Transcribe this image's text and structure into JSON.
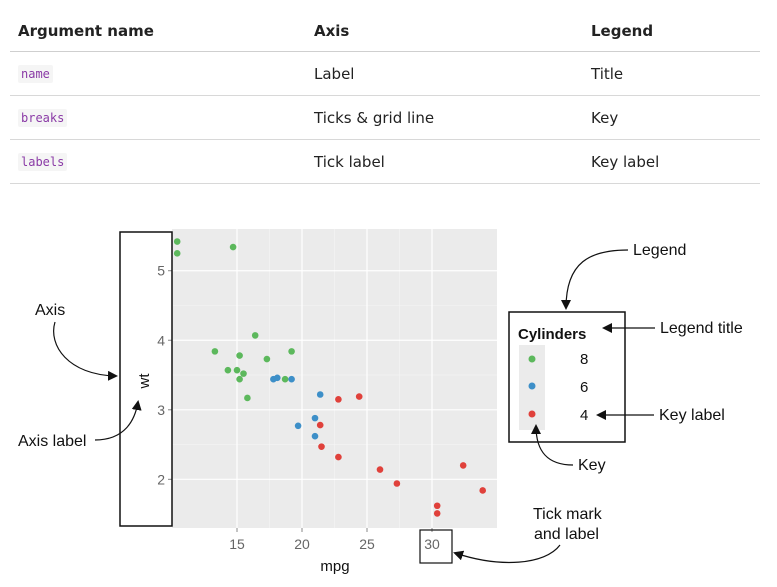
{
  "table": {
    "headers": [
      "Argument name",
      "Axis",
      "Legend"
    ],
    "rows": [
      {
        "argument": "name",
        "axis": "Label",
        "legend": "Title"
      },
      {
        "argument": "breaks",
        "axis": "Ticks & grid line",
        "legend": "Key"
      },
      {
        "argument": "labels",
        "axis": "Tick label",
        "legend": "Key label"
      }
    ]
  },
  "annotations": {
    "axis": "Axis",
    "axis_label": "Axis label",
    "legend": "Legend",
    "legend_title": "Legend title",
    "key_label": "Key label",
    "key": "Key",
    "tick_mark_line1": "Tick mark",
    "tick_mark_line2": "and label"
  },
  "chart_data": {
    "type": "scatter",
    "xlabel": "mpg",
    "ylabel": "wt",
    "x_ticks": [
      15,
      20,
      25,
      30
    ],
    "y_ticks": [
      2,
      3,
      4,
      5
    ],
    "xlim": [
      10,
      35
    ],
    "ylim": [
      1.3,
      5.6
    ],
    "grid": true,
    "legend_position": "right",
    "legend": {
      "title": "Cylinders",
      "entries": [
        {
          "label": "8",
          "color": "#5cb85c"
        },
        {
          "label": "6",
          "color": "#3d8fc8"
        },
        {
          "label": "4",
          "color": "#e0413b"
        }
      ]
    },
    "series": [
      {
        "name": "8",
        "color": "#5cb85c",
        "points": [
          [
            10.4,
            5.25
          ],
          [
            10.4,
            5.42
          ],
          [
            14.7,
            5.34
          ],
          [
            13.3,
            3.84
          ],
          [
            14.3,
            3.57
          ],
          [
            15.0,
            3.57
          ],
          [
            15.2,
            3.78
          ],
          [
            15.2,
            3.44
          ],
          [
            15.5,
            3.52
          ],
          [
            15.8,
            3.17
          ],
          [
            16.4,
            4.07
          ],
          [
            17.3,
            3.73
          ],
          [
            18.7,
            3.44
          ],
          [
            19.2,
            3.84
          ]
        ]
      },
      {
        "name": "6",
        "color": "#3d8fc8",
        "points": [
          [
            17.8,
            3.44
          ],
          [
            18.1,
            3.46
          ],
          [
            19.2,
            3.44
          ],
          [
            19.7,
            2.77
          ],
          [
            21.0,
            2.62
          ],
          [
            21.0,
            2.88
          ],
          [
            21.4,
            3.22
          ]
        ]
      },
      {
        "name": "4",
        "color": "#e0413b",
        "points": [
          [
            21.4,
            2.78
          ],
          [
            21.5,
            2.47
          ],
          [
            22.8,
            2.32
          ],
          [
            22.8,
            3.15
          ],
          [
            24.4,
            3.19
          ],
          [
            26.0,
            2.14
          ],
          [
            27.3,
            1.94
          ],
          [
            30.4,
            1.62
          ],
          [
            30.4,
            1.51
          ],
          [
            32.4,
            2.2
          ],
          [
            33.9,
            1.84
          ]
        ]
      }
    ]
  }
}
